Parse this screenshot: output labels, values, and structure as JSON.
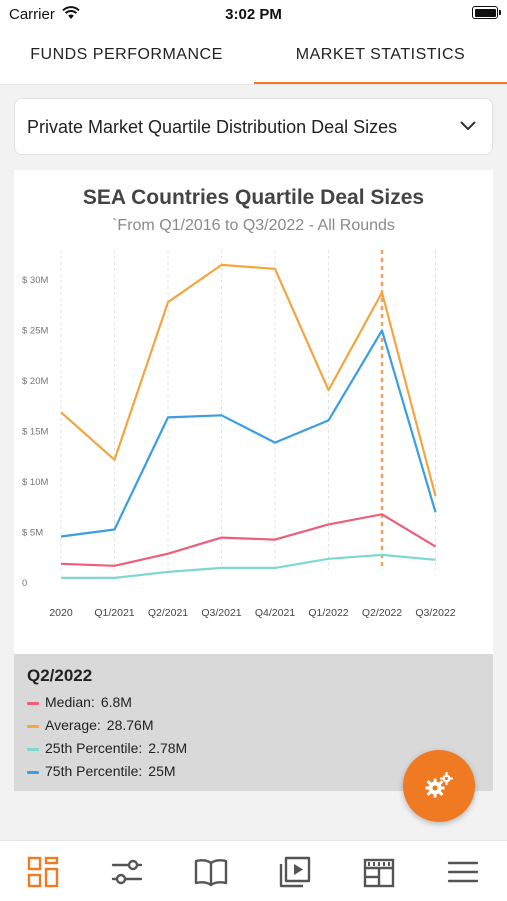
{
  "status_bar": {
    "carrier": "Carrier",
    "time": "3:02 PM"
  },
  "tabs": [
    {
      "label": "FUNDS PERFORMANCE",
      "active": false
    },
    {
      "label": "MARKET STATISTICS",
      "active": true
    }
  ],
  "dropdown": {
    "selected": "Private Market Quartile Distribution Deal Sizes"
  },
  "chart_data": {
    "type": "line",
    "title": "SEA Countries Quartile Deal Sizes",
    "subtitle": "`From Q1/2016 to Q3/2022 - All Rounds",
    "categories": [
      "2020",
      "Q1/2021",
      "Q2/2021",
      "Q3/2021",
      "Q4/2021",
      "Q1/2022",
      "Q2/2022",
      "Q3/2022"
    ],
    "y_ticks": [
      {
        "value": 0,
        "label": "0"
      },
      {
        "value": 5,
        "label": "$ 5M"
      },
      {
        "value": 10,
        "label": "$ 10M"
      },
      {
        "value": 15,
        "label": "$ 15M"
      },
      {
        "value": 20,
        "label": "$ 20M"
      },
      {
        "value": 25,
        "label": "$ 25M"
      },
      {
        "value": 30,
        "label": "$ 30M"
      }
    ],
    "ylim": [
      0,
      30
    ],
    "y_unit": "million USD",
    "highlight_category": "Q2/2022",
    "grid": "vertical dashed",
    "series": [
      {
        "name": "Average",
        "color": "#f4a540",
        "values": [
          16.9,
          12.2,
          27.8,
          31.5,
          31.1,
          19.1,
          28.76,
          8.6
        ]
      },
      {
        "name": "75th Percentile",
        "color": "#3a9ee2",
        "values": [
          4.6,
          5.3,
          16.4,
          16.6,
          13.9,
          16.1,
          25.0,
          7.0
        ]
      },
      {
        "name": "Median",
        "color": "#ec5e7a",
        "values": [
          1.9,
          1.7,
          2.9,
          4.5,
          4.3,
          5.8,
          6.8,
          3.6
        ]
      },
      {
        "name": "25th Percentile",
        "color": "#7fd8cf",
        "values": [
          0.5,
          0.5,
          1.1,
          1.5,
          1.5,
          2.4,
          2.78,
          2.3
        ]
      }
    ]
  },
  "legend": {
    "period": "Q2/2022",
    "items": [
      {
        "label": "Median:",
        "value": "6.8M",
        "color": "#ec5e7a"
      },
      {
        "label": "Average:",
        "value": "28.76M",
        "color": "#f4a540"
      },
      {
        "label": "25th Percentile:",
        "value": "2.78M",
        "color": "#7fd8cf"
      },
      {
        "label": "75th Percentile:",
        "value": "25M",
        "color": "#3a9ee2"
      }
    ]
  },
  "fab": {
    "icon": "gears-icon"
  },
  "bottom_nav": [
    {
      "icon": "dashboard-icon",
      "active": true
    },
    {
      "icon": "filter-sliders-icon",
      "active": false
    },
    {
      "icon": "book-icon",
      "active": false
    },
    {
      "icon": "video-library-icon",
      "active": false
    },
    {
      "icon": "calendar-icon",
      "active": false
    },
    {
      "icon": "menu-icon",
      "active": false
    }
  ],
  "colors": {
    "accent": "#f07a22",
    "inactive_icon": "#555555"
  }
}
